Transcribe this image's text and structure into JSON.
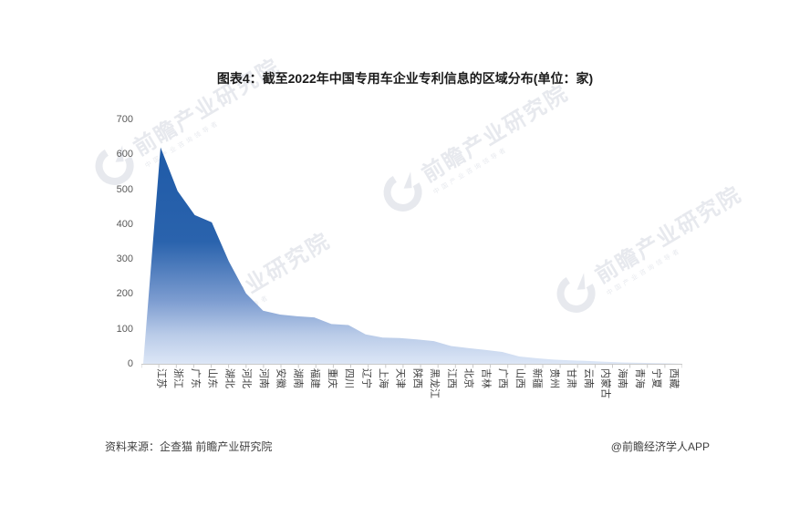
{
  "title": "图表4：截至2022年中国专用车企业专利信息的区域分布(单位：家)",
  "footer": {
    "source": "资料来源：企查猫 前瞻产业研究院",
    "credit": "@前瞻经济学人APP"
  },
  "watermark": {
    "brand": "前瞻产业研究院",
    "slogan": "中国产业咨询领导者"
  },
  "colors": {
    "area_top": "#1C58A6",
    "area_mid": "#2A63AD",
    "area_fade": "#7C9CD0",
    "area_light": "#B9CBE8",
    "area_bottom": "#DCE6F6",
    "axis": "#C9C9C9",
    "y_label": "#595959",
    "x_label": "#404040",
    "title_color": "#1a1a1a"
  },
  "chart_data": {
    "type": "area",
    "title": "图表4：截至2022年中国专用车企业专利信息的区域分布(单位：家)",
    "unit": "家",
    "categories": [
      "江苏",
      "浙江",
      "广东",
      "山东",
      "湖北",
      "河北",
      "河南",
      "安徽",
      "湖南",
      "福建",
      "重庆",
      "四川",
      "辽宁",
      "上海",
      "天津",
      "陕西",
      "黑龙江",
      "江西",
      "北京",
      "吉林",
      "广西",
      "山西",
      "新疆",
      "贵州",
      "甘肃",
      "云南",
      "内蒙古",
      "海南",
      "青海",
      "宁夏",
      "西藏"
    ],
    "values": [
      620,
      495,
      426,
      405,
      293,
      202,
      152,
      141,
      136,
      133,
      114,
      111,
      84,
      75,
      74,
      70,
      65,
      51,
      45,
      40,
      34,
      21,
      16,
      12,
      10,
      8,
      6,
      4,
      3,
      2,
      1
    ],
    "xlabel": "",
    "ylabel": "",
    "ylim": [
      0,
      700
    ],
    "yticks": [
      700,
      600,
      500,
      400,
      300,
      200,
      100,
      0
    ],
    "grid": false,
    "legend": false,
    "fill": "vertical blue gradient, dark at top fading to pale blue at baseline"
  }
}
